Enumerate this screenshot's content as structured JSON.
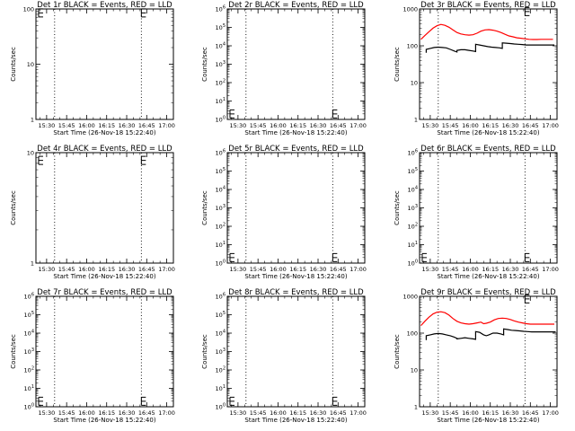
{
  "chart_data": [
    {
      "type": "line",
      "title": "Det 1r BLACK = Events, RED = LLD",
      "xlabel": "Start Time (26-Nov-18 15:22:40)",
      "ylabel": "Counts/sec",
      "xlim": [
        "15:22",
        "17:05"
      ],
      "x_ticks": [
        "15:30",
        "15:45",
        "16:00",
        "16:15",
        "16:30",
        "16:45",
        "17:00"
      ],
      "yscale": "log",
      "ylim": [
        1,
        100
      ],
      "y_ticks": [
        {
          "v": 1,
          "label": "1"
        },
        {
          "v": 10,
          "label": "10"
        },
        {
          "v": 100,
          "label": "100"
        }
      ],
      "markers": [
        "15:36",
        "16:41"
      ],
      "error_bars": [
        {
          "x": "15:24",
          "y": 85
        },
        {
          "x": "16:41",
          "y": 85
        }
      ],
      "series": []
    },
    {
      "type": "line",
      "title": "Det 2r BLACK = Events, RED = LLD",
      "xlabel": "Start Time (26-Nov-18 15:22:40)",
      "ylabel": "Counts/sec",
      "xlim": [
        "15:22",
        "17:05"
      ],
      "x_ticks": [
        "15:30",
        "15:45",
        "16:00",
        "16:15",
        "16:30",
        "16:45",
        "17:00"
      ],
      "yscale": "log",
      "ylim": [
        1,
        1000000
      ],
      "y_ticks": [
        {
          "v": 1,
          "label": "10^0"
        },
        {
          "v": 10,
          "label": "10^1"
        },
        {
          "v": 100,
          "label": "10^2"
        },
        {
          "v": 1000,
          "label": "10^3"
        },
        {
          "v": 10000,
          "label": "10^4"
        },
        {
          "v": 100000,
          "label": "10^5"
        },
        {
          "v": 1000000,
          "label": "10^6"
        }
      ],
      "markers": [
        "15:36",
        "16:41"
      ],
      "error_bars": [
        {
          "x": "15:24",
          "y": 2
        },
        {
          "x": "16:41",
          "y": 2
        }
      ],
      "series": []
    },
    {
      "type": "line",
      "title": "Det 3r BLACK = Events, RED = LLD",
      "xlabel": "Start Time (26-Nov-18 15:22:40)",
      "ylabel": "Counts/sec",
      "xlim": [
        "15:22",
        "17:05"
      ],
      "x_ticks": [
        "15:30",
        "15:45",
        "16:00",
        "16:15",
        "16:30",
        "16:45",
        "17:00"
      ],
      "yscale": "log",
      "ylim": [
        1,
        1000
      ],
      "y_ticks": [
        {
          "v": 1,
          "label": "1"
        },
        {
          "v": 10,
          "label": "10"
        },
        {
          "v": 100,
          "label": "100"
        },
        {
          "v": 1000,
          "label": "1000"
        }
      ],
      "markers": [
        "15:36",
        "16:41"
      ],
      "error_bars": [
        {
          "x": "16:41",
          "y": 850
        }
      ],
      "series": [
        {
          "color": "#ff0000",
          "x": [
            "15:23",
            "15:26",
            "15:29",
            "15:32",
            "15:35",
            "15:38",
            "15:41",
            "15:44",
            "15:47",
            "15:50",
            "15:53",
            "15:56",
            "15:59",
            "16:02",
            "16:05",
            "16:08",
            "16:11",
            "16:14",
            "16:17",
            "16:20",
            "16:23",
            "16:26",
            "16:29",
            "16:32",
            "16:35",
            "16:38",
            "16:41",
            "16:44",
            "16:47",
            "16:50",
            "16:53",
            "16:56",
            "16:59",
            "17:02"
          ],
          "y": [
            150,
            190,
            240,
            300,
            350,
            380,
            360,
            320,
            270,
            230,
            210,
            200,
            195,
            200,
            220,
            250,
            270,
            275,
            265,
            250,
            230,
            205,
            185,
            175,
            165,
            160,
            155,
            150,
            148,
            148,
            150,
            150,
            150,
            150
          ]
        },
        {
          "color": "#000000",
          "x": [
            "15:27",
            "15:27",
            "15:30",
            "15:33",
            "15:36",
            "15:39",
            "15:42",
            "15:45",
            "15:48",
            "15:50",
            "15:50",
            "15:53",
            "15:56",
            "15:59",
            "16:02",
            "16:04",
            "16:04",
            "16:07",
            "16:10",
            "16:13",
            "16:16",
            "16:19",
            "16:22",
            "16:24",
            "16:24",
            "16:27",
            "16:30",
            "16:33",
            "16:36",
            "16:39",
            "16:42",
            "16:45",
            "16:48",
            "16:51",
            "16:54",
            "16:57",
            "17:00",
            "17:03"
          ],
          "y": [
            65,
            80,
            85,
            90,
            92,
            90,
            88,
            80,
            72,
            68,
            75,
            78,
            78,
            75,
            72,
            70,
            110,
            105,
            100,
            95,
            92,
            90,
            88,
            85,
            120,
            118,
            115,
            112,
            110,
            108,
            105,
            105,
            105,
            105,
            105,
            105,
            105,
            105
          ]
        }
      ]
    },
    {
      "type": "line",
      "title": "Det 4r BLACK = Events, RED = LLD",
      "xlabel": "Start Time (26-Nov-18 15:22:40)",
      "ylabel": "Counts/sec",
      "xlim": [
        "15:22",
        "17:05"
      ],
      "x_ticks": [
        "15:30",
        "15:45",
        "16:00",
        "16:15",
        "16:30",
        "16:45",
        "17:00"
      ],
      "yscale": "log",
      "ylim": [
        1,
        10
      ],
      "y_ticks": [
        {
          "v": 1,
          "label": "1"
        },
        {
          "v": 10,
          "label": "10"
        }
      ],
      "markers": [
        "15:36",
        "16:41"
      ],
      "error_bars": [
        {
          "x": "15:24",
          "y": 8.5
        },
        {
          "x": "16:41",
          "y": 8.5
        }
      ],
      "series": []
    },
    {
      "type": "line",
      "title": "Det 5r BLACK = Events, RED = LLD",
      "xlabel": "Start Time (26-Nov-18 15:22:40)",
      "ylabel": "Counts/sec",
      "xlim": [
        "15:22",
        "17:05"
      ],
      "x_ticks": [
        "15:30",
        "15:45",
        "16:00",
        "16:15",
        "16:30",
        "16:45",
        "17:00"
      ],
      "yscale": "log",
      "ylim": [
        1,
        1000000
      ],
      "y_ticks": [
        {
          "v": 1,
          "label": "10^0"
        },
        {
          "v": 10,
          "label": "10^1"
        },
        {
          "v": 100,
          "label": "10^2"
        },
        {
          "v": 1000,
          "label": "10^3"
        },
        {
          "v": 10000,
          "label": "10^4"
        },
        {
          "v": 100000,
          "label": "10^5"
        },
        {
          "v": 1000000,
          "label": "10^6"
        }
      ],
      "markers": [
        "15:36",
        "16:41"
      ],
      "error_bars": [
        {
          "x": "15:24",
          "y": 2
        },
        {
          "x": "16:41",
          "y": 2
        }
      ],
      "series": []
    },
    {
      "type": "line",
      "title": "Det 6r BLACK = Events, RED = LLD",
      "xlabel": "Start Time (26-Nov-18 15:22:40)",
      "ylabel": "Counts/sec",
      "xlim": [
        "15:22",
        "17:05"
      ],
      "x_ticks": [
        "15:30",
        "15:45",
        "16:00",
        "16:15",
        "16:30",
        "16:45",
        "17:00"
      ],
      "yscale": "log",
      "ylim": [
        1,
        1000000
      ],
      "y_ticks": [
        {
          "v": 1,
          "label": "10^0"
        },
        {
          "v": 10,
          "label": "10^1"
        },
        {
          "v": 100,
          "label": "10^2"
        },
        {
          "v": 1000,
          "label": "10^3"
        },
        {
          "v": 10000,
          "label": "10^4"
        },
        {
          "v": 100000,
          "label": "10^5"
        },
        {
          "v": 1000000,
          "label": "10^6"
        }
      ],
      "markers": [
        "15:36",
        "16:41"
      ],
      "error_bars": [
        {
          "x": "15:24",
          "y": 2
        },
        {
          "x": "16:41",
          "y": 2
        }
      ],
      "series": []
    },
    {
      "type": "line",
      "title": "Det 7r BLACK = Events, RED = LLD",
      "xlabel": "Start Time (26-Nov-18 15:22:40)",
      "ylabel": "Counts/sec",
      "xlim": [
        "15:22",
        "17:05"
      ],
      "x_ticks": [
        "15:30",
        "15:45",
        "16:00",
        "16:15",
        "16:30",
        "16:45",
        "17:00"
      ],
      "yscale": "log",
      "ylim": [
        1,
        1000000
      ],
      "y_ticks": [
        {
          "v": 1,
          "label": "10^0"
        },
        {
          "v": 10,
          "label": "10^1"
        },
        {
          "v": 100,
          "label": "10^2"
        },
        {
          "v": 1000,
          "label": "10^3"
        },
        {
          "v": 10000,
          "label": "10^4"
        },
        {
          "v": 100000,
          "label": "10^5"
        },
        {
          "v": 1000000,
          "label": "10^6"
        }
      ],
      "markers": [
        "15:36",
        "16:41"
      ],
      "error_bars": [
        {
          "x": "15:24",
          "y": 2
        },
        {
          "x": "16:41",
          "y": 2
        }
      ],
      "series": []
    },
    {
      "type": "line",
      "title": "Det 8r BLACK = Events, RED = LLD",
      "xlabel": "Start Time (26-Nov-18 15:22:40)",
      "ylabel": "Counts/sec",
      "xlim": [
        "15:22",
        "17:05"
      ],
      "x_ticks": [
        "15:30",
        "15:45",
        "16:00",
        "16:15",
        "16:30",
        "16:45",
        "17:00"
      ],
      "yscale": "log",
      "ylim": [
        1,
        1000000
      ],
      "y_ticks": [
        {
          "v": 1,
          "label": "10^0"
        },
        {
          "v": 10,
          "label": "10^1"
        },
        {
          "v": 100,
          "label": "10^2"
        },
        {
          "v": 1000,
          "label": "10^3"
        },
        {
          "v": 10000,
          "label": "10^4"
        },
        {
          "v": 100000,
          "label": "10^5"
        },
        {
          "v": 1000000,
          "label": "10^6"
        }
      ],
      "markers": [
        "15:36",
        "16:41"
      ],
      "error_bars": [
        {
          "x": "15:24",
          "y": 2
        },
        {
          "x": "16:41",
          "y": 2
        }
      ],
      "series": []
    },
    {
      "type": "line",
      "title": "Det 9r BLACK = Events, RED = LLD",
      "xlabel": "Start Time (26-Nov-18 15:22:40)",
      "ylabel": "Counts/sec",
      "xlim": [
        "15:22",
        "17:05"
      ],
      "x_ticks": [
        "15:30",
        "15:45",
        "16:00",
        "16:15",
        "16:30",
        "16:45",
        "17:00"
      ],
      "yscale": "log",
      "ylim": [
        1,
        1000
      ],
      "y_ticks": [
        {
          "v": 1,
          "label": "1"
        },
        {
          "v": 10,
          "label": "10"
        },
        {
          "v": 100,
          "label": "100"
        },
        {
          "v": 1000,
          "label": "1000"
        }
      ],
      "markers": [
        "15:36",
        "16:41"
      ],
      "error_bars": [
        {
          "x": "16:41",
          "y": 850
        }
      ],
      "series": [
        {
          "color": "#ff0000",
          "x": [
            "15:23",
            "15:26",
            "15:29",
            "15:32",
            "15:35",
            "15:38",
            "15:41",
            "15:44",
            "15:47",
            "15:50",
            "15:53",
            "15:56",
            "15:59",
            "16:02",
            "16:05",
            "16:08",
            "16:10",
            "16:12",
            "16:15",
            "16:18",
            "16:21",
            "16:24",
            "16:27",
            "16:30",
            "16:33",
            "16:36",
            "16:39",
            "16:42",
            "16:45",
            "16:48",
            "16:51",
            "16:54",
            "16:57",
            "17:00",
            "17:03"
          ],
          "y": [
            160,
            210,
            270,
            330,
            370,
            380,
            360,
            310,
            250,
            210,
            190,
            180,
            175,
            180,
            190,
            200,
            180,
            185,
            200,
            230,
            250,
            255,
            250,
            235,
            215,
            200,
            190,
            180,
            175,
            175,
            175,
            175,
            175,
            175,
            175
          ]
        },
        {
          "color": "#000000",
          "x": [
            "15:27",
            "15:27",
            "15:30",
            "15:33",
            "15:36",
            "15:39",
            "15:42",
            "15:45",
            "15:48",
            "15:50",
            "15:50",
            "15:53",
            "15:56",
            "15:59",
            "16:02",
            "16:04",
            "16:04",
            "16:07",
            "16:10",
            "16:12",
            "16:14",
            "16:17",
            "16:20",
            "16:23",
            "16:25",
            "16:25",
            "16:28",
            "16:31",
            "16:34",
            "16:37",
            "16:40",
            "16:43",
            "16:46",
            "16:49",
            "16:52",
            "16:55",
            "16:58",
            "17:01",
            "17:04"
          ],
          "y": [
            65,
            85,
            90,
            95,
            98,
            95,
            90,
            85,
            78,
            72,
            70,
            72,
            75,
            72,
            70,
            68,
            110,
            105,
            90,
            85,
            90,
            100,
            100,
            95,
            90,
            130,
            125,
            120,
            118,
            115,
            112,
            110,
            108,
            108,
            108,
            108,
            108,
            108,
            108
          ]
        }
      ]
    }
  ]
}
